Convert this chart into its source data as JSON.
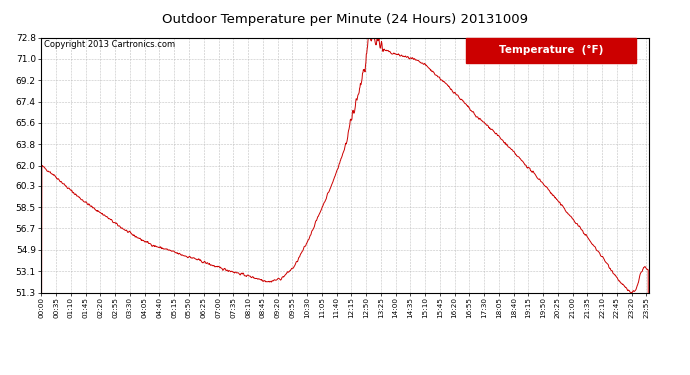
{
  "title": "Outdoor Temperature per Minute (24 Hours) 20131009",
  "copyright_text": "Copyright 2013 Cartronics.com",
  "legend_label": "Temperature  (°F)",
  "line_color": "#cc0000",
  "background_color": "#ffffff",
  "plot_bg_color": "#ffffff",
  "yticks": [
    51.3,
    53.1,
    54.9,
    56.7,
    58.5,
    60.3,
    62.0,
    63.8,
    65.6,
    67.4,
    69.2,
    71.0,
    72.8
  ],
  "ymin": 51.3,
  "ymax": 72.8,
  "grid_color": "#bbbbbb",
  "legend_bg": "#cc0000",
  "legend_text_color": "#ffffff",
  "figwidth": 6.9,
  "figheight": 3.75,
  "dpi": 100
}
